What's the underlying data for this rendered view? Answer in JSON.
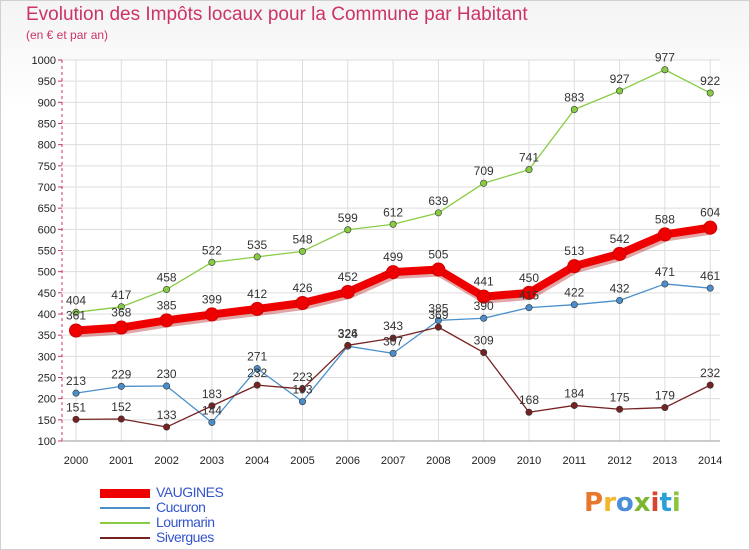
{
  "title": "Evolution des Impôts locaux pour la Commune par Habitant",
  "subtitle": "(en € et par an)",
  "logo": {
    "text": "Proxiti",
    "colors": [
      "#e8772e",
      "#f2b62a",
      "#4a8fd8",
      "#7cb82f",
      "#d9432f",
      "#2aa0d8",
      "#8bc53f"
    ]
  },
  "chart_data": {
    "type": "line",
    "x": [
      2000,
      2001,
      2002,
      2003,
      2004,
      2005,
      2006,
      2007,
      2008,
      2009,
      2010,
      2011,
      2012,
      2013,
      2014
    ],
    "ylim": [
      100,
      1000
    ],
    "yticks": [
      100,
      150,
      200,
      250,
      300,
      350,
      400,
      450,
      500,
      550,
      600,
      650,
      700,
      750,
      800,
      850,
      900,
      950,
      1000
    ],
    "grid": true,
    "legend_position": "bottom-left",
    "series": [
      {
        "name": "VAUGINES",
        "color": "#ee0000",
        "values": [
          361,
          368,
          385,
          399,
          412,
          426,
          452,
          499,
          505,
          441,
          450,
          513,
          542,
          588,
          604
        ]
      },
      {
        "name": "Cucuron",
        "color": "#4a8fcc",
        "values": [
          213,
          229,
          230,
          144,
          271,
          193,
          324,
          307,
          385,
          390,
          415,
          422,
          432,
          471,
          461
        ]
      },
      {
        "name": "Lourmarin",
        "color": "#88cc44",
        "values": [
          404,
          417,
          458,
          522,
          535,
          548,
          599,
          612,
          639,
          709,
          741,
          883,
          927,
          977,
          922
        ]
      },
      {
        "name": "Sivergues",
        "color": "#772222",
        "values": [
          151,
          152,
          133,
          183,
          232,
          223,
          326,
          343,
          369,
          309,
          168,
          184,
          175,
          179,
          232
        ]
      }
    ]
  }
}
